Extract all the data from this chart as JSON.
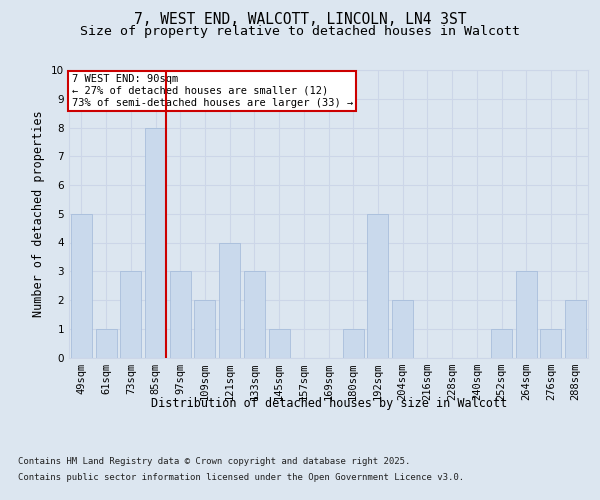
{
  "title_line1": "7, WEST END, WALCOTT, LINCOLN, LN4 3ST",
  "title_line2": "Size of property relative to detached houses in Walcott",
  "xlabel": "Distribution of detached houses by size in Walcott",
  "ylabel": "Number of detached properties",
  "categories": [
    "49sqm",
    "61sqm",
    "73sqm",
    "85sqm",
    "97sqm",
    "109sqm",
    "121sqm",
    "133sqm",
    "145sqm",
    "157sqm",
    "169sqm",
    "180sqm",
    "192sqm",
    "204sqm",
    "216sqm",
    "228sqm",
    "240sqm",
    "252sqm",
    "264sqm",
    "276sqm",
    "288sqm"
  ],
  "values": [
    5,
    1,
    3,
    8,
    3,
    2,
    4,
    3,
    1,
    0,
    0,
    1,
    5,
    2,
    0,
    0,
    0,
    1,
    3,
    1,
    2
  ],
  "bar_color": "#c9d9ec",
  "bar_edge_color": "#a0b8d8",
  "highlight_line_bar_index": 3,
  "highlight_line_color": "#cc0000",
  "annotation_text": "7 WEST END: 90sqm\n← 27% of detached houses are smaller (12)\n73% of semi-detached houses are larger (33) →",
  "annotation_box_facecolor": "#ffffff",
  "annotation_box_edgecolor": "#cc0000",
  "ylim": [
    0,
    10
  ],
  "yticks": [
    0,
    1,
    2,
    3,
    4,
    5,
    6,
    7,
    8,
    9,
    10
  ],
  "grid_color": "#ccd6e8",
  "background_color": "#dce6f0",
  "plot_bg_color": "#dce6f0",
  "footer_line1": "Contains HM Land Registry data © Crown copyright and database right 2025.",
  "footer_line2": "Contains public sector information licensed under the Open Government Licence v3.0.",
  "title_fontsize": 10.5,
  "subtitle_fontsize": 9.5,
  "axis_label_fontsize": 8.5,
  "tick_fontsize": 7.5,
  "annotation_fontsize": 7.5,
  "footer_fontsize": 6.5,
  "ylabel_fontsize": 8.5
}
